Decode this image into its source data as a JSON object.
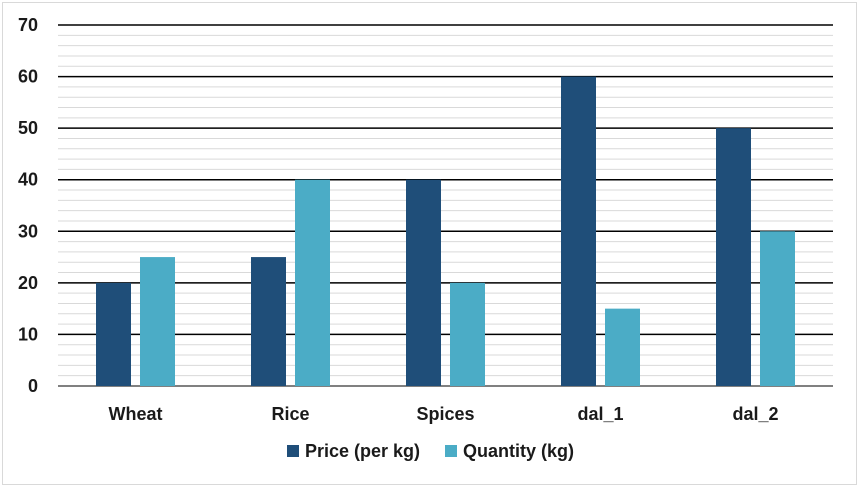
{
  "chart_data": {
    "type": "bar",
    "categories": [
      "Wheat",
      "Rice",
      "Spices",
      "dal_1",
      "dal_2"
    ],
    "series": [
      {
        "name": "Price (per kg)",
        "values": [
          20,
          25,
          40,
          60,
          50
        ],
        "color": "#1f4e79"
      },
      {
        "name": "Quantity (kg)",
        "values": [
          25,
          40,
          20,
          15,
          30
        ],
        "color": "#4bacc6"
      }
    ],
    "yticks": [
      "0",
      "10",
      "20",
      "30",
      "40",
      "50",
      "60",
      "70"
    ],
    "ylim": [
      0,
      70
    ],
    "major_gridline_color": "#000000",
    "minor_gridline_color": "#d9d9d9",
    "legend_position": "bottom"
  }
}
